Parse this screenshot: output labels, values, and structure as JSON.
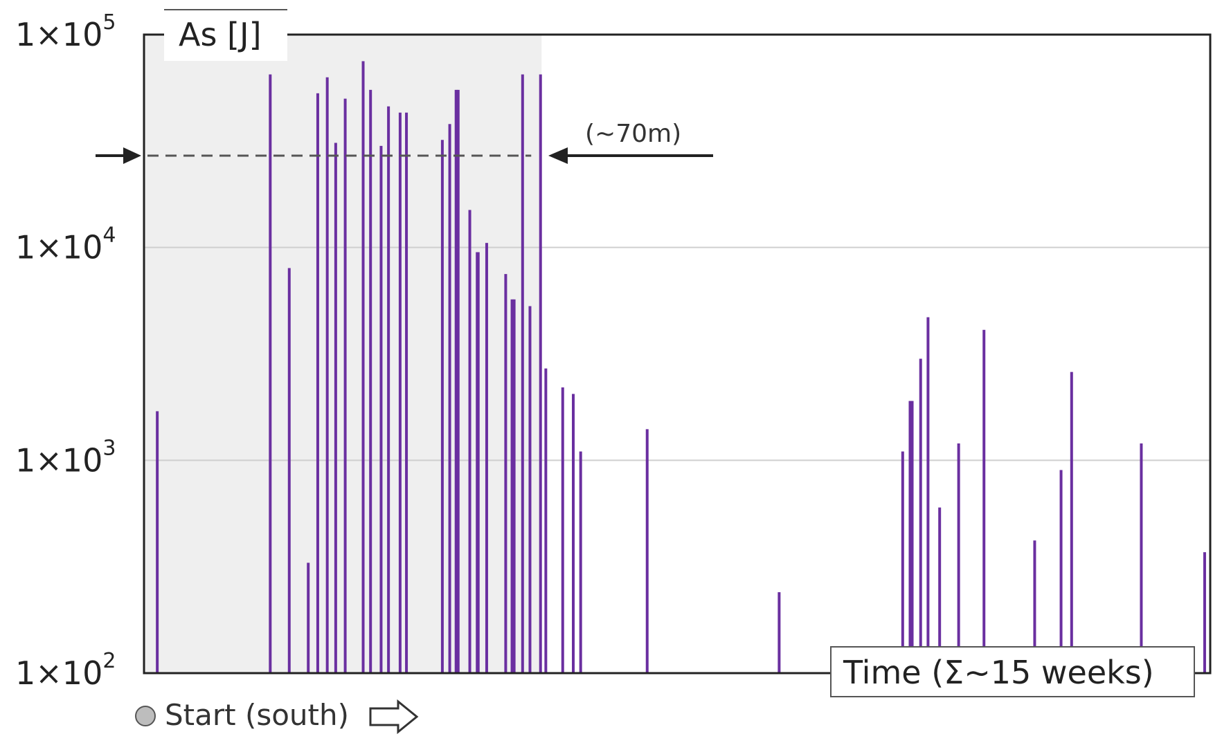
{
  "chart_data": {
    "type": "bar",
    "ylabel": "As [J]",
    "xlabel": "Time (Σ~15 weeks)",
    "yscale": "log",
    "ylim": [
      100,
      100000
    ],
    "y_ticks": [
      {
        "base": "1×10",
        "exp": "2",
        "value": 100
      },
      {
        "base": "1×10",
        "exp": "3",
        "value": 1000
      },
      {
        "base": "1×10",
        "exp": "4",
        "value": 10000
      },
      {
        "base": "1×10",
        "exp": "5",
        "value": 100000
      }
    ],
    "grid": true,
    "bar_color": "#6a2fa0",
    "x_range": [
      0,
      100
    ],
    "highlight_region": [
      0,
      37
    ],
    "highlight_color": "#efefef",
    "threshold": {
      "value": 27000,
      "label": "(~70m)"
    },
    "start_label": "Start (south)",
    "events": [
      {
        "t": 0.6,
        "v": 1700
      },
      {
        "t": 11.3,
        "v": 65000
      },
      {
        "t": 13.1,
        "v": 8000
      },
      {
        "t": 14.9,
        "v": 330
      },
      {
        "t": 15.8,
        "v": 53000
      },
      {
        "t": 16.7,
        "v": 63000
      },
      {
        "t": 17.5,
        "v": 31000
      },
      {
        "t": 18.4,
        "v": 50000
      },
      {
        "t": 20.1,
        "v": 75000
      },
      {
        "t": 20.8,
        "v": 55000
      },
      {
        "t": 21.8,
        "v": 30000
      },
      {
        "t": 22.5,
        "v": 46000
      },
      {
        "t": 23.6,
        "v": 43000
      },
      {
        "t": 24.2,
        "v": 43000
      },
      {
        "t": 27.6,
        "v": 32000
      },
      {
        "t": 28.3,
        "v": 38000
      },
      {
        "t": 28.9,
        "v": 55000
      },
      {
        "t": 29.1,
        "v": 55000
      },
      {
        "t": 30.2,
        "v": 15000
      },
      {
        "t": 30.9,
        "v": 9500
      },
      {
        "t": 31.0,
        "v": 9500
      },
      {
        "t": 31.8,
        "v": 10500
      },
      {
        "t": 33.6,
        "v": 7500
      },
      {
        "t": 34.2,
        "v": 5700
      },
      {
        "t": 34.4,
        "v": 5700
      },
      {
        "t": 35.2,
        "v": 65000
      },
      {
        "t": 35.9,
        "v": 5300
      },
      {
        "t": 36.9,
        "v": 65000
      },
      {
        "t": 37.4,
        "v": 2700
      },
      {
        "t": 39.0,
        "v": 2200
      },
      {
        "t": 40.0,
        "v": 2050
      },
      {
        "t": 40.7,
        "v": 1100
      },
      {
        "t": 47.0,
        "v": 1400
      },
      {
        "t": 59.5,
        "v": 240
      },
      {
        "t": 71.2,
        "v": 1100
      },
      {
        "t": 71.9,
        "v": 1900
      },
      {
        "t": 72.1,
        "v": 1900
      },
      {
        "t": 72.9,
        "v": 3000
      },
      {
        "t": 73.6,
        "v": 4700
      },
      {
        "t": 74.7,
        "v": 600
      },
      {
        "t": 76.5,
        "v": 1200
      },
      {
        "t": 78.9,
        "v": 4100
      },
      {
        "t": 83.7,
        "v": 420
      },
      {
        "t": 86.2,
        "v": 900
      },
      {
        "t": 87.2,
        "v": 2600
      },
      {
        "t": 93.8,
        "v": 1200
      },
      {
        "t": 99.8,
        "v": 370
      }
    ]
  }
}
